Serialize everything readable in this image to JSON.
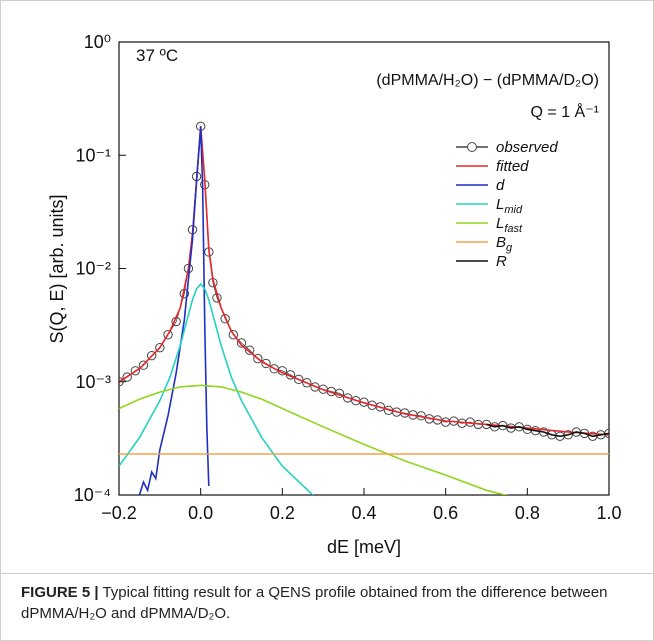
{
  "chart_data": {
    "type": "line",
    "y_label": "S(Q, E) [arb. units]",
    "x_label": "dE [meV]",
    "annotations": [
      "37 ºC",
      "(dPMMA/H₂O) − (dPMMA/D₂O)",
      "Q = 1 Å⁻¹"
    ],
    "xlim": [
      -0.2,
      1.0
    ],
    "xticks": [
      {
        "value": -0.2,
        "label": "−0.2"
      },
      {
        "value": 0,
        "label": "0.0"
      },
      0.2,
      0.4,
      0.6,
      0.8,
      {
        "value": 1.0,
        "label": "1.0"
      }
    ],
    "ylim": [
      0.0001,
      1
    ],
    "ylog": true,
    "yticks": [
      {
        "value": 1,
        "label": "10⁰"
      },
      {
        "value": 0.1,
        "label": "10⁻¹"
      },
      {
        "value": 0.01,
        "label": "10⁻²"
      },
      {
        "value": 0.001,
        "label": "10⁻³"
      },
      {
        "value": 0.0001,
        "label": "10⁻⁴"
      }
    ],
    "legend": "upper right",
    "series": [
      {
        "name": "observed",
        "color": "#444444",
        "marker": "circle",
        "x": [
          -0.2,
          -0.18,
          -0.16,
          -0.14,
          -0.12,
          -0.1,
          -0.08,
          -0.06,
          -0.04,
          -0.03,
          -0.02,
          -0.01,
          0,
          0.01,
          0.02,
          0.03,
          0.04,
          0.06,
          0.08,
          0.1,
          0.12,
          0.14,
          0.16,
          0.18,
          0.2,
          0.22,
          0.24,
          0.26,
          0.28,
          0.3,
          0.32,
          0.34,
          0.36,
          0.38,
          0.4,
          0.42,
          0.44,
          0.46,
          0.48,
          0.5,
          0.52,
          0.54,
          0.56,
          0.58,
          0.6,
          0.62,
          0.64,
          0.66,
          0.68,
          0.7,
          0.72,
          0.74,
          0.76,
          0.78,
          0.8,
          0.82,
          0.84,
          0.86,
          0.88,
          0.9,
          0.92,
          0.94,
          0.96,
          0.98,
          1.0
        ],
        "values": [
          0.001,
          0.0011,
          0.00125,
          0.0014,
          0.0017,
          0.002,
          0.0026,
          0.0034,
          0.006,
          0.01,
          0.022,
          0.065,
          0.18,
          0.055,
          0.014,
          0.0075,
          0.0055,
          0.0036,
          0.0026,
          0.0022,
          0.0019,
          0.0016,
          0.00145,
          0.0013,
          0.00125,
          0.00115,
          0.00105,
          0.00098,
          0.0009,
          0.00086,
          0.00082,
          0.00079,
          0.00072,
          0.00068,
          0.00066,
          0.00062,
          0.0006,
          0.00056,
          0.00054,
          0.00053,
          0.00051,
          0.0005,
          0.00047,
          0.00046,
          0.00044,
          0.00045,
          0.00043,
          0.00044,
          0.00042,
          0.00042,
          0.0004,
          0.00041,
          0.00039,
          0.0004,
          0.00038,
          0.00037,
          0.00036,
          0.00034,
          0.00033,
          0.00034,
          0.00036,
          0.00035,
          0.00033,
          0.00034,
          0.00035
        ]
      },
      {
        "name": "fitted",
        "color": "#e8262a",
        "x": [
          -0.2,
          -0.15,
          -0.1,
          -0.075,
          -0.05,
          -0.03,
          -0.02,
          -0.01,
          0,
          0.01,
          0.02,
          0.03,
          0.05,
          0.075,
          0.1,
          0.15,
          0.2,
          0.3,
          0.4,
          0.5,
          0.6,
          0.7,
          0.8,
          0.9,
          1.0
        ],
        "values": [
          0.001,
          0.0013,
          0.002,
          0.0028,
          0.0045,
          0.01,
          0.02,
          0.06,
          0.18,
          0.06,
          0.015,
          0.008,
          0.0045,
          0.0028,
          0.0021,
          0.0015,
          0.0012,
          0.00085,
          0.00065,
          0.00052,
          0.00045,
          0.00042,
          0.00039,
          0.00036,
          0.00034
        ]
      },
      {
        "name": "d",
        "color": "#1f2fc4",
        "x": [
          -0.15,
          -0.14,
          -0.13,
          -0.12,
          -0.11,
          -0.1,
          -0.08,
          -0.06,
          -0.04,
          -0.03,
          -0.02,
          -0.01,
          0,
          0.005,
          0.01,
          0.015,
          0.02
        ],
        "values": [
          0.0001,
          0.00013,
          0.00011,
          0.00016,
          0.00014,
          0.00025,
          0.0005,
          0.0012,
          0.0035,
          0.008,
          0.018,
          0.06,
          0.18,
          0.05,
          0.003,
          0.0004,
          0.00012
        ]
      },
      {
        "name": "L",
        "subscript": "mid",
        "color": "#22d3c0",
        "x": [
          -0.2,
          -0.15,
          -0.1,
          -0.075,
          -0.05,
          -0.03,
          -0.02,
          -0.01,
          0,
          0.01,
          0.02,
          0.03,
          0.05,
          0.075,
          0.1,
          0.15,
          0.2,
          0.3
        ],
        "values": [
          0.00018,
          0.00032,
          0.00068,
          0.0011,
          0.0021,
          0.0039,
          0.0053,
          0.0066,
          0.0073,
          0.0066,
          0.0053,
          0.0039,
          0.0021,
          0.0011,
          0.00068,
          0.00032,
          0.00018,
          8.2e-05
        ]
      },
      {
        "name": "L",
        "subscript": "fast",
        "color": "#8fd61f",
        "x": [
          -0.2,
          -0.15,
          -0.1,
          -0.05,
          0,
          0.05,
          0.1,
          0.15,
          0.2,
          0.3,
          0.4,
          0.5,
          0.6,
          0.7,
          0.8
        ],
        "values": [
          0.00058,
          0.0007,
          0.00081,
          0.0009,
          0.00093,
          0.0009,
          0.00081,
          0.0007,
          0.00058,
          0.0004,
          0.00028,
          0.0002,
          0.00015,
          0.00011,
          8.9e-05
        ]
      },
      {
        "name": "B",
        "subscript": "g",
        "color": "#f5a04a",
        "x": [
          -0.2,
          1.0
        ],
        "values": [
          0.00023,
          0.00023
        ]
      },
      {
        "name": "R",
        "color": "#111111",
        "x": [
          0.7,
          0.72,
          0.74,
          0.76,
          0.78,
          0.8,
          0.82,
          0.84,
          0.86,
          0.88,
          0.9,
          0.92,
          0.94,
          0.96,
          0.98,
          1.0
        ],
        "values": [
          0.00042,
          0.0004,
          0.00041,
          0.00039,
          0.0004,
          0.00038,
          0.00037,
          0.00036,
          0.00034,
          0.00033,
          0.00034,
          0.00036,
          0.00035,
          0.00033,
          0.00034,
          0.00035
        ]
      }
    ]
  },
  "caption": {
    "label": "FIGURE 5 |",
    "text": "Typical fitting result for a QENS profile obtained from the difference between dPMMA/H₂O and dPMMA/D₂O."
  }
}
